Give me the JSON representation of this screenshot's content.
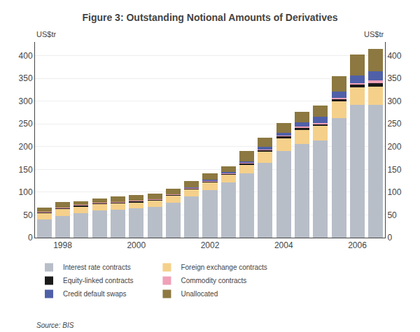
{
  "chart_data": {
    "type": "bar",
    "stacked": true,
    "title": "Figure 3: Outstanding Notional Amounts of Derivatives",
    "y_label": "US$tr",
    "y2_label": "US$tr",
    "annotations": [
      "Source: BIS"
    ],
    "categories": [
      null,
      "1998",
      null,
      null,
      null,
      "2000",
      null,
      null,
      null,
      "2002",
      null,
      null,
      null,
      "2004",
      null,
      null,
      null,
      "2006",
      null
    ],
    "series": [
      {
        "name": "Interest rate contracts",
        "color": "#b8bec8",
        "values": [
          40,
          48,
          54,
          60,
          62,
          64,
          67,
          77,
          90,
          104,
          122,
          142,
          165,
          190,
          206,
          213,
          262,
          292,
          292
        ]
      },
      {
        "name": "Foreign exchange contracts",
        "color": "#f5d08a",
        "values": [
          14,
          15,
          15,
          14,
          14,
          14,
          15,
          16,
          17,
          18,
          17,
          19,
          24,
          28,
          31,
          32,
          37,
          38,
          40
        ]
      },
      {
        "name": "Equity-linked contracts",
        "color": "#1a1a1a",
        "values": [
          2,
          2,
          2,
          2,
          2,
          2,
          2,
          2,
          2,
          2,
          2,
          3,
          4,
          5,
          5,
          5,
          6,
          7,
          8
        ]
      },
      {
        "name": "Commodity contracts",
        "color": "#f0a0b8",
        "values": [
          0.5,
          0.6,
          0.6,
          0.6,
          0.7,
          0.7,
          0.8,
          0.8,
          1.0,
          1.0,
          1.0,
          1.0,
          1.0,
          1.5,
          2.0,
          2.0,
          2.5,
          3.0,
          5.0
        ]
      },
      {
        "name": "Credit default swaps",
        "color": "#5060a8",
        "values": [
          0,
          0,
          0,
          0,
          0,
          0,
          0,
          0,
          1,
          2,
          2,
          3,
          5,
          6,
          10,
          13,
          13,
          17,
          20
        ]
      },
      {
        "name": "Unallocated",
        "color": "#8c7840",
        "values": [
          10,
          12,
          8,
          10,
          12,
          13,
          12,
          11,
          13,
          15,
          12,
          22,
          20,
          22,
          23,
          25,
          34,
          45,
          50
        ]
      }
    ],
    "ylim": [
      0,
      430
    ],
    "yticks": [
      0,
      50,
      100,
      150,
      200,
      250,
      300,
      350,
      400
    ],
    "y2lim": [
      0,
      430
    ],
    "y2ticks": [
      0,
      50,
      100,
      150,
      200,
      250,
      300,
      350,
      400
    ],
    "grid": true
  }
}
